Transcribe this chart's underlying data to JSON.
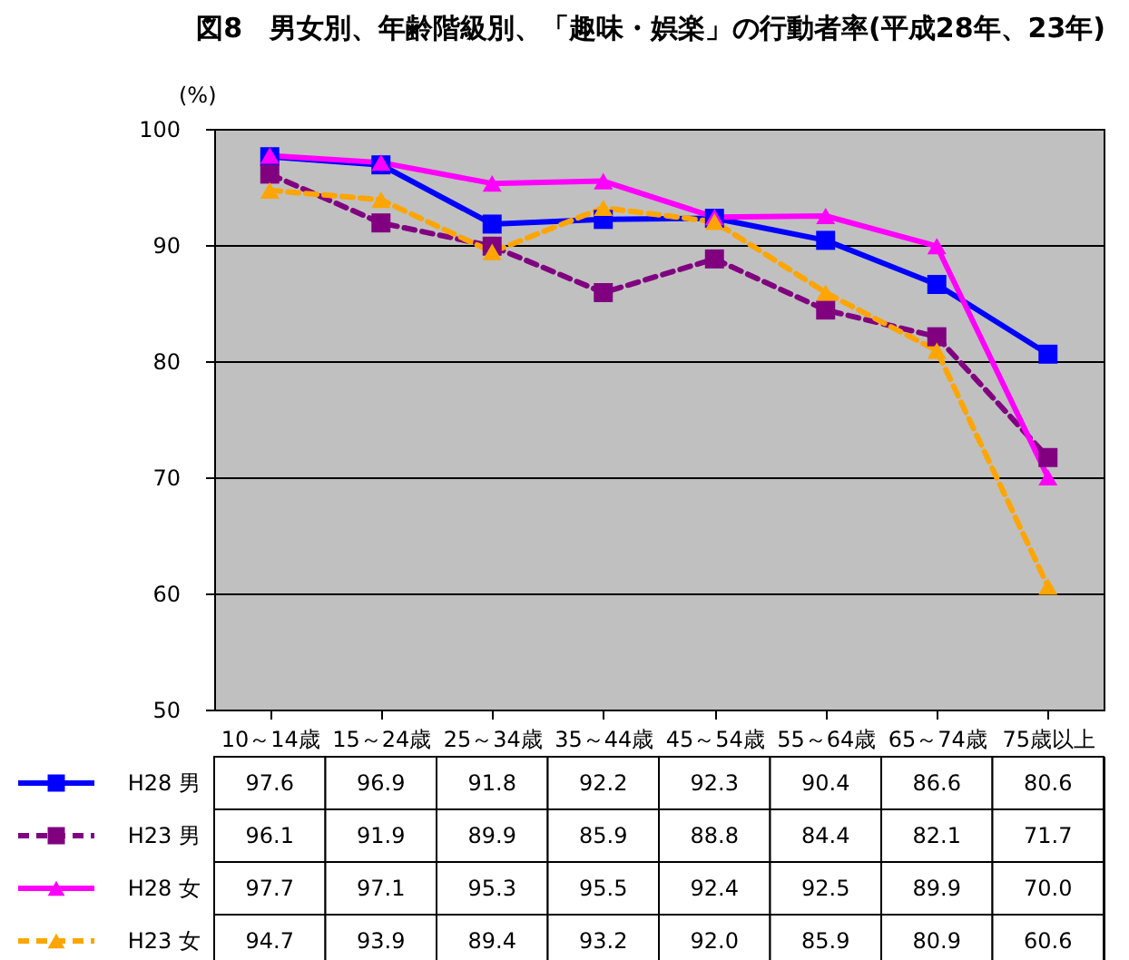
{
  "chart_data": {
    "type": "line",
    "title": "図8　男女別、年齢階級別、「趣味・娯楽」の行動者率(平成28年、23年)",
    "ylabel": "(%)",
    "categories": [
      "10～14歳",
      "15～24歳",
      "25～34歳",
      "35～44歳",
      "45～54歳",
      "55～64歳",
      "65～74歳",
      "75歳以上"
    ],
    "ylim": [
      50,
      100
    ],
    "yticks": [
      50,
      60,
      70,
      80,
      90,
      100
    ],
    "grid": "y",
    "legend": "bottom left",
    "series": [
      {
        "name": "H28 男",
        "color": "#0000ff",
        "marker": "square",
        "line_style": "solid",
        "values": [
          97.6,
          96.9,
          91.8,
          92.2,
          92.3,
          90.4,
          86.6,
          80.6
        ],
        "value_labels": [
          "97.6",
          "96.9",
          "91.8",
          "92.2",
          "92.3",
          "90.4",
          "86.6",
          "80.6"
        ]
      },
      {
        "name": "H23 男",
        "color": "#800080",
        "marker": "square",
        "line_style": "dashed",
        "values": [
          96.1,
          91.9,
          89.9,
          85.9,
          88.8,
          84.4,
          82.1,
          71.7
        ],
        "value_labels": [
          "96.1",
          "91.9",
          "89.9",
          "85.9",
          "88.8",
          "84.4",
          "82.1",
          "71.7"
        ]
      },
      {
        "name": "H28 女",
        "color": "#ff00ff",
        "marker": "triangle",
        "line_style": "solid",
        "values": [
          97.7,
          97.1,
          95.3,
          95.5,
          92.4,
          92.5,
          89.9,
          70.0
        ],
        "value_labels": [
          "97.7",
          "97.1",
          "95.3",
          "95.5",
          "92.4",
          "92.5",
          "89.9",
          "70.0"
        ]
      },
      {
        "name": "H23 女",
        "color": "#ffa500",
        "marker": "triangle",
        "line_style": "dashed",
        "values": [
          94.7,
          93.9,
          89.4,
          93.2,
          92.0,
          85.9,
          80.9,
          60.6
        ],
        "value_labels": [
          "94.7",
          "93.9",
          "89.4",
          "93.2",
          "92.0",
          "85.9",
          "80.9",
          "60.6"
        ]
      }
    ]
  }
}
